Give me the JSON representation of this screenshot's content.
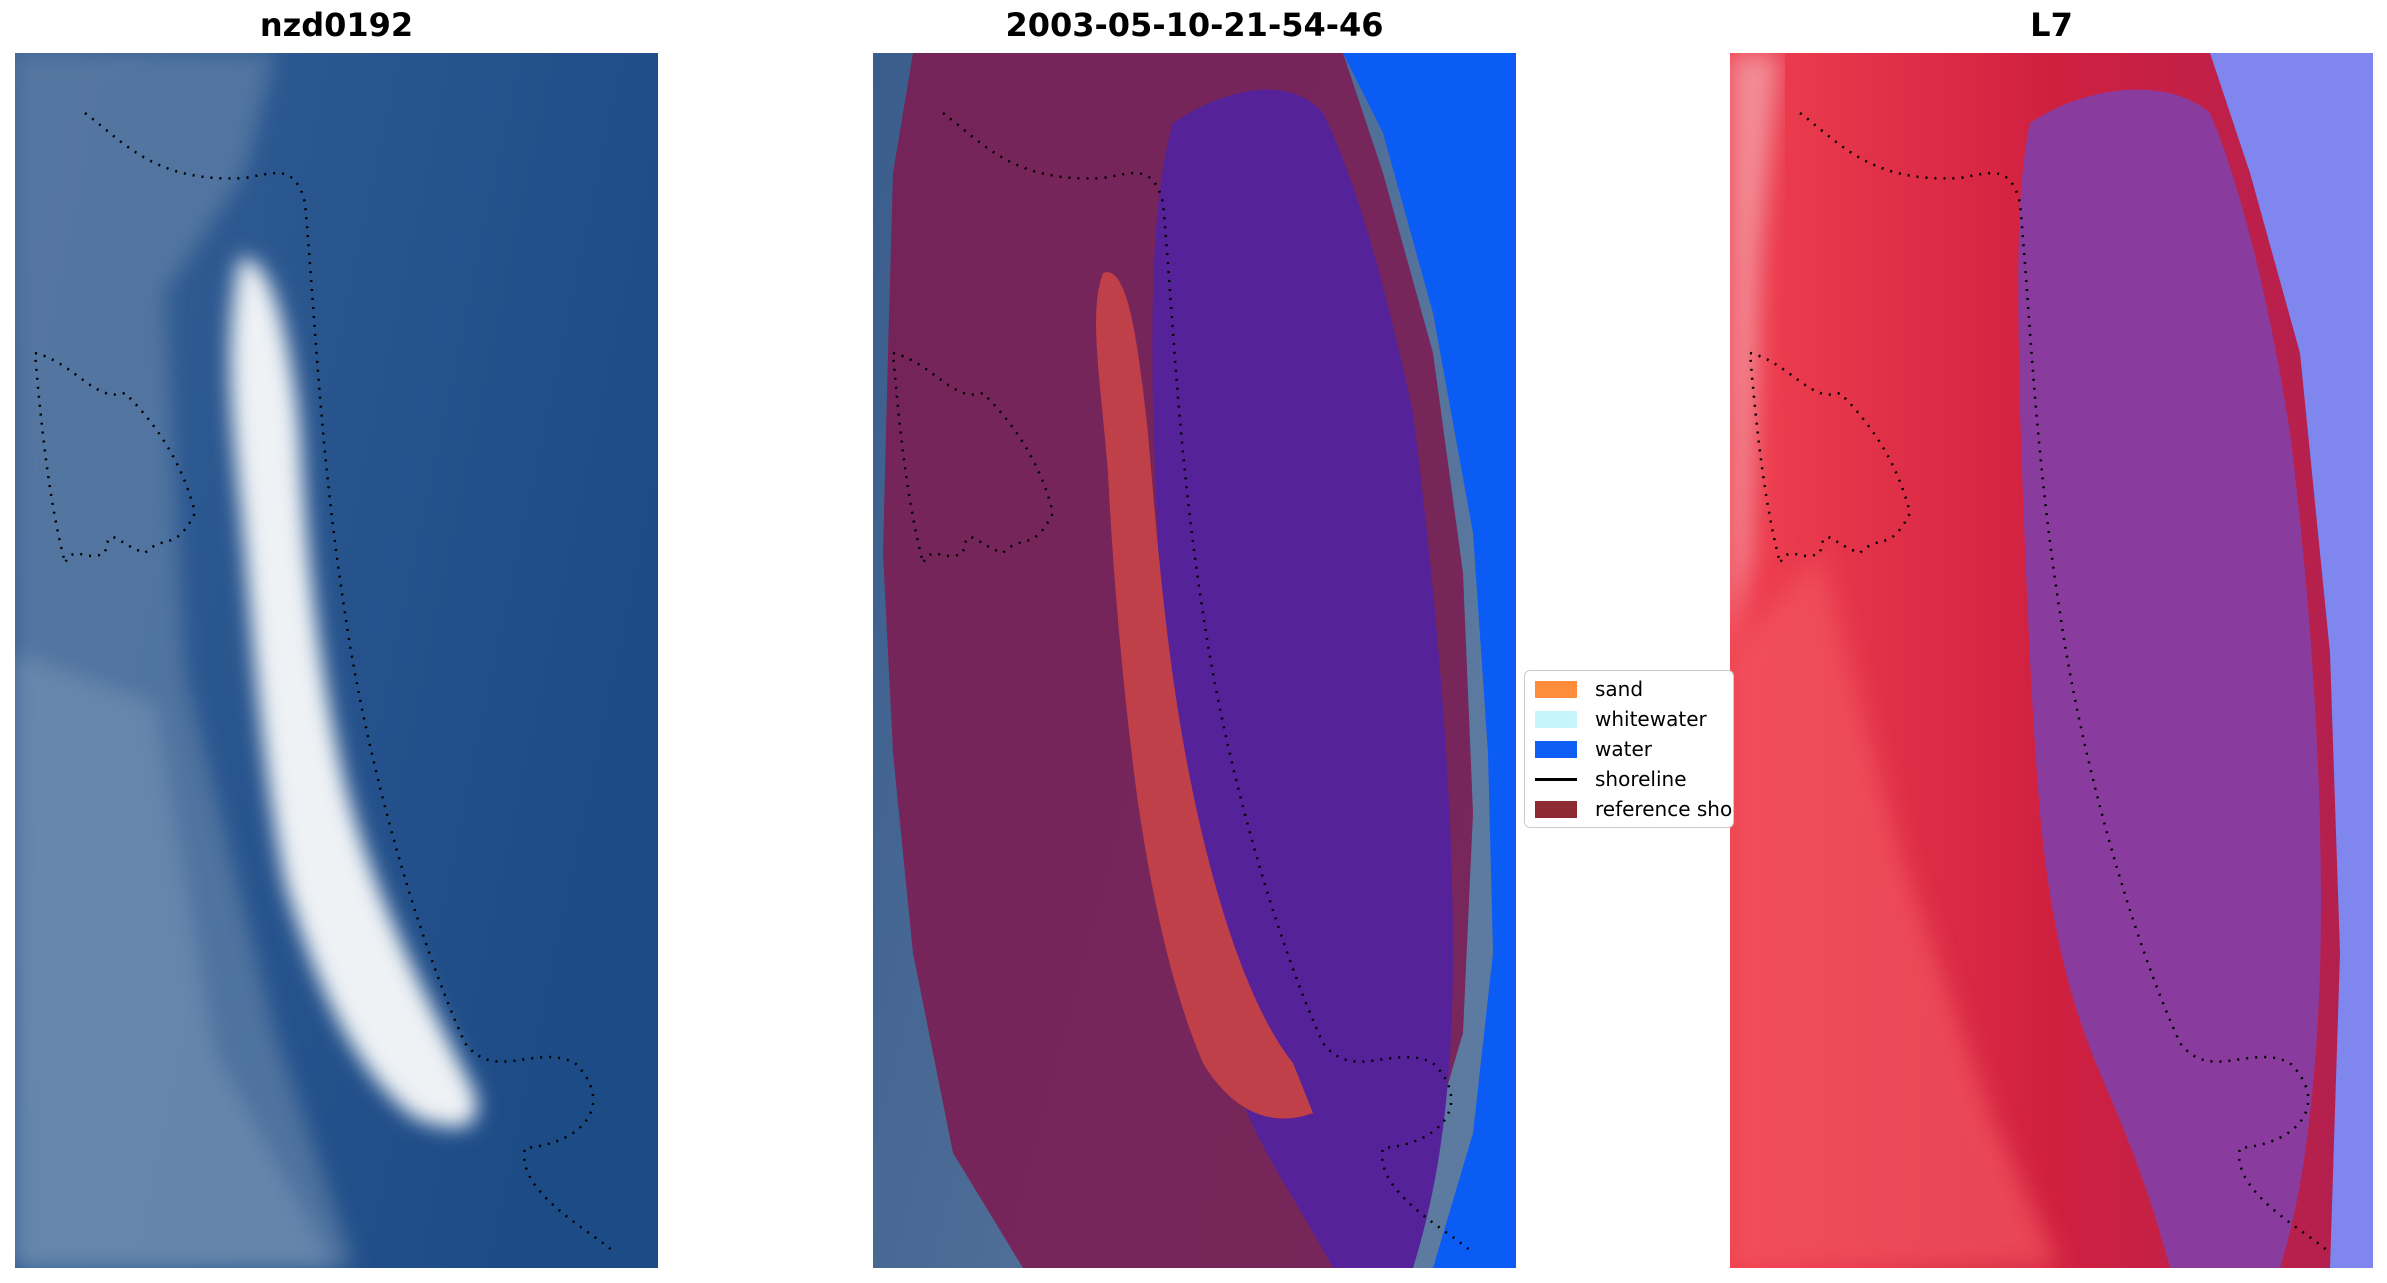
{
  "panels": [
    {
      "title": "nzd0192"
    },
    {
      "title": "2003-05-10-21-54-46"
    },
    {
      "title": "L7"
    }
  ],
  "legend": {
    "items": [
      {
        "label": "sand",
        "color": "#ff8c3b",
        "kind": "patch"
      },
      {
        "label": "whitewater",
        "color": "#c6f6fb",
        "kind": "patch"
      },
      {
        "label": "water",
        "color": "#0f5ff5",
        "kind": "patch"
      },
      {
        "label": "shoreline",
        "color": "#000000",
        "kind": "line"
      },
      {
        "label": "reference sho",
        "color": "#8e2a32",
        "kind": "patch"
      }
    ]
  },
  "colors": {
    "ocean_deep": "#1f4b85",
    "land_gray": "#5a7fa6",
    "beach_white": "#e8eef2",
    "overlay_buffer": "#7a1f55",
    "overlay_sand": "#c0404a",
    "overlay_water_zone": "#56229a",
    "overlay_open_water": "#0b5cf5",
    "index_red": "#d8213a",
    "index_purple": "#8a3c9e",
    "index_blue": "#7f86ee"
  }
}
